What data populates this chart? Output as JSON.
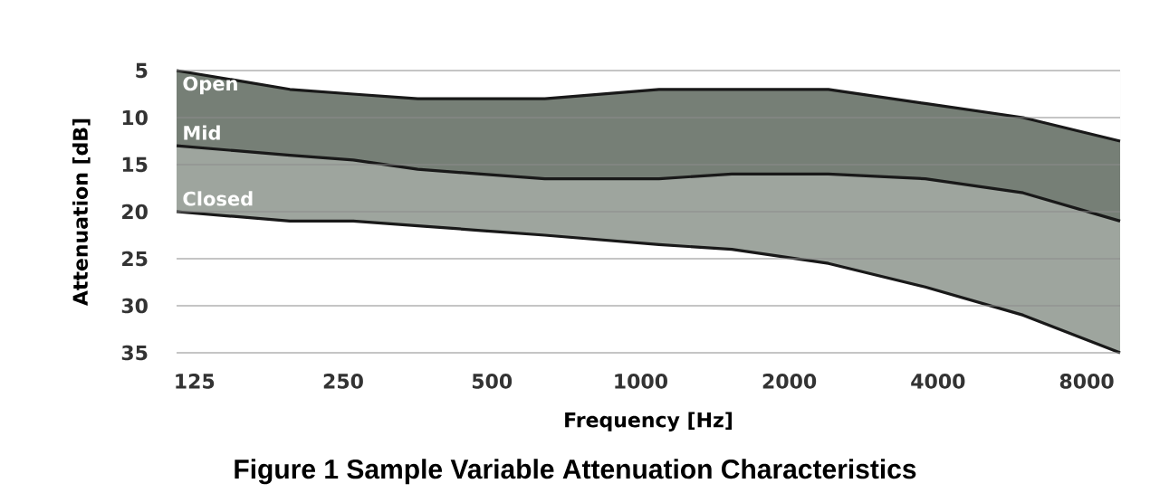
{
  "chart_data": {
    "type": "area",
    "title": "Figure 1 Sample Variable Attenuation Characteristics",
    "xlabel": "Frequency [Hz]",
    "ylabel": "Attenuation [dB]",
    "x": [
      115,
      150,
      195,
      262,
      354,
      475,
      640,
      1090,
      1530,
      2400,
      3770,
      5950,
      9350
    ],
    "series": [
      {
        "name": "Open",
        "color": "#ffffff",
        "values": [
          5,
          6,
          7,
          7.5,
          8,
          8,
          8,
          7,
          7,
          7,
          8.5,
          10,
          12.5
        ]
      },
      {
        "name": "Mid",
        "color": "#767f76",
        "values": [
          13,
          13.5,
          14,
          14.5,
          15.5,
          16,
          16.5,
          16.5,
          16,
          16,
          16.5,
          18,
          21
        ]
      },
      {
        "name": "Closed",
        "color": "#9ea59e",
        "values": [
          20,
          20.5,
          21,
          21,
          21.5,
          22,
          22.5,
          23.5,
          24,
          25.5,
          28,
          31,
          35
        ]
      }
    ],
    "log": "x",
    "xlim": [
      115,
      9350
    ],
    "ylim": [
      35,
      5
    ],
    "xticks": [
      125,
      250,
      500,
      1000,
      2000,
      4000,
      8000
    ],
    "yticks": [
      5,
      10,
      15,
      20,
      25,
      30,
      35
    ],
    "grid": "y",
    "marker": "none"
  }
}
